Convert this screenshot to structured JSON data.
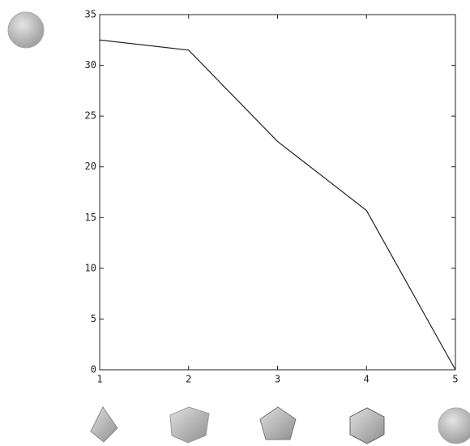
{
  "chart_data": {
    "type": "line",
    "x": [
      1,
      2,
      3,
      4,
      5
    ],
    "series": [
      {
        "color": "#222222",
        "values": [
          32.5,
          31.5,
          22.5,
          15.7,
          0
        ]
      }
    ],
    "xlim": [
      1,
      5
    ],
    "xticks": [
      1,
      2,
      3,
      4,
      5
    ],
    "ylim": [
      0,
      35
    ],
    "yticks": [
      0,
      5,
      10,
      15,
      20,
      25,
      30,
      35
    ],
    "grid": false
  }
}
